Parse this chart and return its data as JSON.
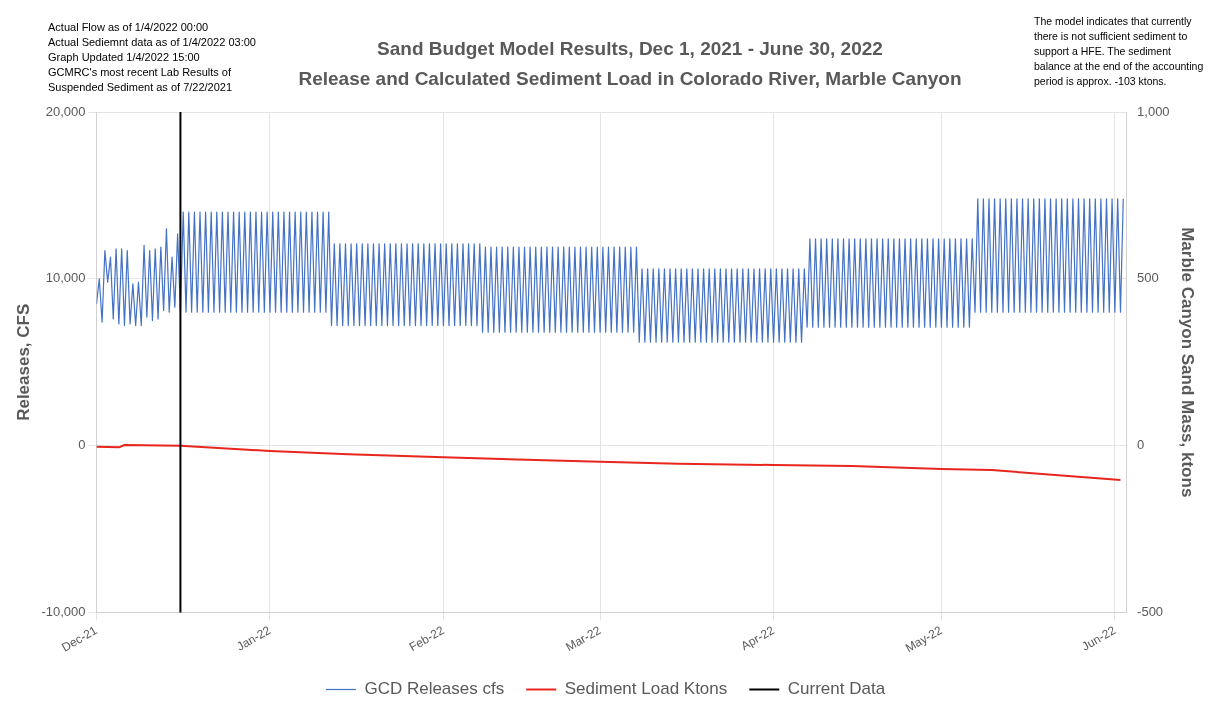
{
  "chart_data": {
    "type": "line",
    "title": "Sand Budget Model Results, Dec 1, 2021 - June 30, 2022",
    "subtitle": "Release and Calculated Sediment Load in Colorado River, Marble Canyon",
    "ylabel": "Releases, CFS",
    "y2label": "Marble Canyon Sand Mass, ktons",
    "annotations": [
      "Actual Flow as of 1/4/2022 00:00",
      "Actual Sediemnt data as of 1/4/2022 03:00",
      "Graph Updated 1/4/2022 15:00",
      "GCMRC's most recent Lab Results of Suspended Sediment as of 7/22/2021",
      "The model indicates that currently there is not sufficient sediment to support a HFE. The sediment balance at the end of the accounting period is approx. -103 ktons."
    ],
    "xlim": [
      "2021-12-01",
      "2022-06-03"
    ],
    "xticks": [
      {
        "value": "2021-12-01",
        "label": "Dec-21"
      },
      {
        "value": "2022-01-01",
        "label": "Jan-22"
      },
      {
        "value": "2022-02-01",
        "label": "Feb-22"
      },
      {
        "value": "2022-03-01",
        "label": "Mar-22"
      },
      {
        "value": "2022-04-01",
        "label": "Apr-22"
      },
      {
        "value": "2022-05-01",
        "label": "May-22"
      },
      {
        "value": "2022-06-01",
        "label": "Jun-22"
      }
    ],
    "ylim": [
      -10000,
      20000
    ],
    "yticks": [
      {
        "value": -10000,
        "label": "-10,000"
      },
      {
        "value": 0,
        "label": "0"
      },
      {
        "value": 10000,
        "label": "10,000"
      },
      {
        "value": 20000,
        "label": "20,000"
      }
    ],
    "y2lim": [
      -500,
      1000
    ],
    "y2ticks": [
      -500,
      0,
      500,
      {
        "value": 1000,
        "label": "1,000"
      }
    ],
    "grid": true,
    "legend": "bottom",
    "marker": "none",
    "line_style": "solid",
    "series": [
      {
        "name": "GCD Releases cfs",
        "color": "#4472c4",
        "x": [
          "2021-12-01",
          "2021-12-01T12:00",
          "2021-12-02",
          "2021-12-02T12:00",
          "2021-12-03",
          "2021-12-03T12:00",
          "2021-12-04",
          "2021-12-04T12:00",
          "2021-12-05",
          "2021-12-05T12:00",
          "2021-12-06",
          "2021-12-06T12:00",
          "2021-12-07",
          "2021-12-07T12:00",
          "2021-12-08",
          "2021-12-08T12:00",
          "2021-12-09",
          "2021-12-09T12:00",
          "2021-12-10",
          "2021-12-10T12:00",
          "2021-12-11",
          "2021-12-11T12:00",
          "2021-12-12",
          "2021-12-12T12:00",
          "2021-12-13",
          "2021-12-13T12:00",
          "2021-12-14",
          "2021-12-14T12:00",
          "2021-12-15",
          "2021-12-15T12:00",
          "2021-12-16",
          "2021-12-16T12:00",
          "2021-12-17",
          "2021-12-17T12:00",
          "2021-12-18",
          "2021-12-18T12:00",
          "2021-12-19",
          "2021-12-19T12:00",
          "2021-12-20",
          "2021-12-20T12:00",
          "2021-12-21",
          "2021-12-21T12:00",
          "2021-12-22",
          "2021-12-22T12:00",
          "2021-12-23",
          "2021-12-23T12:00",
          "2021-12-24",
          "2021-12-24T12:00",
          "2021-12-25",
          "2021-12-25T12:00",
          "2021-12-26",
          "2021-12-26T12:00",
          "2021-12-27",
          "2021-12-27T12:00",
          "2021-12-28",
          "2021-12-28T12:00",
          "2021-12-29",
          "2021-12-29T12:00",
          "2021-12-30",
          "2021-12-30T12:00",
          "2021-12-31",
          "2021-12-31T12:00",
          "2022-01-01",
          "2022-01-01T12:00",
          "2022-01-02",
          "2022-01-02T12:00",
          "2022-01-03",
          "2022-01-03T12:00",
          "2022-01-04",
          "2022-01-04T12:00",
          "2022-01-05",
          "2022-01-05T12:00",
          "2022-01-06",
          "2022-01-06T12:00",
          "2022-01-07",
          "2022-01-07T12:00",
          "2022-01-08",
          "2022-01-08T12:00",
          "2022-01-09",
          "2022-01-09T12:00",
          "2022-01-10",
          "2022-01-10T12:00",
          "2022-01-11",
          "2022-01-11T12:00",
          "2022-01-12",
          "2022-01-12T12:00",
          "2022-01-13",
          "2022-01-13T12:00",
          "2022-01-14",
          "2022-01-14T12:00",
          "2022-01-15",
          "2022-01-15T12:00",
          "2022-01-16",
          "2022-01-16T12:00",
          "2022-01-17",
          "2022-01-17T12:00",
          "2022-01-18",
          "2022-01-18T12:00",
          "2022-01-19",
          "2022-01-19T12:00",
          "2022-01-20",
          "2022-01-20T12:00",
          "2022-01-21",
          "2022-01-21T12:00",
          "2022-01-22",
          "2022-01-22T12:00",
          "2022-01-23",
          "2022-01-23T12:00",
          "2022-01-24",
          "2022-01-24T12:00",
          "2022-01-25",
          "2022-01-25T12:00",
          "2022-01-26",
          "2022-01-26T12:00",
          "2022-01-27",
          "2022-01-27T12:00",
          "2022-01-28",
          "2022-01-28T12:00",
          "2022-01-29",
          "2022-01-29T12:00",
          "2022-01-30",
          "2022-01-30T12:00",
          "2022-01-31",
          "2022-01-31T12:00",
          "2022-02-01",
          "2022-02-01T12:00",
          "2022-02-02",
          "2022-02-02T12:00",
          "2022-02-03",
          "2022-02-03T12:00",
          "2022-02-04",
          "2022-02-04T12:00",
          "2022-02-05",
          "2022-02-05T12:00",
          "2022-02-06",
          "2022-02-06T12:00",
          "2022-02-07",
          "2022-02-07T12:00",
          "2022-02-08",
          "2022-02-08T12:00",
          "2022-02-09",
          "2022-02-09T12:00",
          "2022-02-10",
          "2022-02-10T12:00",
          "2022-02-11",
          "2022-02-11T12:00",
          "2022-02-12",
          "2022-02-12T12:00",
          "2022-02-13",
          "2022-02-13T12:00",
          "2022-02-14",
          "2022-02-14T12:00",
          "2022-02-15",
          "2022-02-15T12:00",
          "2022-02-16",
          "2022-02-16T12:00",
          "2022-02-17",
          "2022-02-17T12:00",
          "2022-02-18",
          "2022-02-18T12:00",
          "2022-02-19",
          "2022-02-19T12:00",
          "2022-02-20",
          "2022-02-20T12:00",
          "2022-02-21",
          "2022-02-21T12:00",
          "2022-02-22",
          "2022-02-22T12:00",
          "2022-02-23",
          "2022-02-23T12:00",
          "2022-02-24",
          "2022-02-24T12:00",
          "2022-02-25",
          "2022-02-25T12:00",
          "2022-02-26",
          "2022-02-26T12:00",
          "2022-02-27",
          "2022-02-27T12:00",
          "2022-02-28",
          "2022-02-28T12:00",
          "2022-03-01",
          "2022-03-01T12:00",
          "2022-03-02",
          "2022-03-02T12:00",
          "2022-03-03",
          "2022-03-03T12:00",
          "2022-03-04",
          "2022-03-04T12:00",
          "2022-03-05",
          "2022-03-05T12:00",
          "2022-03-06",
          "2022-03-06T12:00",
          "2022-03-07",
          "2022-03-07T12:00",
          "2022-03-08",
          "2022-03-08T12:00",
          "2022-03-09",
          "2022-03-09T12:00",
          "2022-03-10",
          "2022-03-10T12:00",
          "2022-03-11",
          "2022-03-11T12:00",
          "2022-03-12",
          "2022-03-12T12:00",
          "2022-03-13",
          "2022-03-13T12:00",
          "2022-03-14",
          "2022-03-14T12:00",
          "2022-03-15",
          "2022-03-15T12:00",
          "2022-03-16",
          "2022-03-16T12:00",
          "2022-03-17",
          "2022-03-17T12:00",
          "2022-03-18",
          "2022-03-18T12:00",
          "2022-03-19",
          "2022-03-19T12:00",
          "2022-03-20",
          "2022-03-20T12:00",
          "2022-03-21",
          "2022-03-21T12:00",
          "2022-03-22",
          "2022-03-22T12:00",
          "2022-03-23",
          "2022-03-23T12:00",
          "2022-03-24",
          "2022-03-24T12:00",
          "2022-03-25",
          "2022-03-25T12:00",
          "2022-03-26",
          "2022-03-26T12:00",
          "2022-03-27",
          "2022-03-27T12:00",
          "2022-03-28",
          "2022-03-28T12:00",
          "2022-03-29",
          "2022-03-29T12:00",
          "2022-03-30",
          "2022-03-30T12:00",
          "2022-03-31",
          "2022-03-31T12:00",
          "2022-04-01",
          "2022-04-01T12:00",
          "2022-04-02",
          "2022-04-02T12:00",
          "2022-04-03",
          "2022-04-03T12:00",
          "2022-04-04",
          "2022-04-04T12:00",
          "2022-04-05",
          "2022-04-05T12:00",
          "2022-04-06",
          "2022-04-06T12:00",
          "2022-04-07",
          "2022-04-07T12:00",
          "2022-04-08",
          "2022-04-08T12:00",
          "2022-04-09",
          "2022-04-09T12:00",
          "2022-04-10",
          "2022-04-10T12:00",
          "2022-04-11",
          "2022-04-11T12:00",
          "2022-04-12",
          "2022-04-12T12:00",
          "2022-04-13",
          "2022-04-13T12:00",
          "2022-04-14",
          "2022-04-14T12:00",
          "2022-04-15",
          "2022-04-15T12:00",
          "2022-04-16",
          "2022-04-16T12:00",
          "2022-04-17",
          "2022-04-17T12:00",
          "2022-04-18",
          "2022-04-18T12:00",
          "2022-04-19",
          "2022-04-19T12:00",
          "2022-04-20",
          "2022-04-20T12:00",
          "2022-04-21",
          "2022-04-21T12:00",
          "2022-04-22",
          "2022-04-22T12:00",
          "2022-04-23",
          "2022-04-23T12:00",
          "2022-04-24",
          "2022-04-24T12:00",
          "2022-04-25",
          "2022-04-25T12:00",
          "2022-04-26",
          "2022-04-26T12:00",
          "2022-04-27",
          "2022-04-27T12:00",
          "2022-04-28",
          "2022-04-28T12:00",
          "2022-04-29",
          "2022-04-29T12:00",
          "2022-04-30",
          "2022-04-30T12:00",
          "2022-05-01",
          "2022-05-01T12:00",
          "2022-05-02",
          "2022-05-02T12:00",
          "2022-05-03",
          "2022-05-03T12:00",
          "2022-05-04",
          "2022-05-04T12:00",
          "2022-05-05",
          "2022-05-05T12:00",
          "2022-05-06",
          "2022-05-06T12:00",
          "2022-05-07",
          "2022-05-07T12:00",
          "2022-05-08",
          "2022-05-08T12:00",
          "2022-05-09",
          "2022-05-09T12:00",
          "2022-05-10",
          "2022-05-10T12:00",
          "2022-05-11",
          "2022-05-11T12:00",
          "2022-05-12",
          "2022-05-12T12:00",
          "2022-05-13",
          "2022-05-13T12:00",
          "2022-05-14",
          "2022-05-14T12:00",
          "2022-05-15",
          "2022-05-15T12:00",
          "2022-05-16",
          "2022-05-16T12:00",
          "2022-05-17",
          "2022-05-17T12:00",
          "2022-05-18",
          "2022-05-18T12:00",
          "2022-05-19",
          "2022-05-19T12:00",
          "2022-05-20",
          "2022-05-20T12:00",
          "2022-05-21",
          "2022-05-21T12:00",
          "2022-05-22",
          "2022-05-22T12:00",
          "2022-05-23",
          "2022-05-23T12:00",
          "2022-05-24",
          "2022-05-24T12:00",
          "2022-05-25",
          "2022-05-25T12:00",
          "2022-05-26",
          "2022-05-26T12:00",
          "2022-05-27",
          "2022-05-27T12:00",
          "2022-05-28",
          "2022-05-28T12:00",
          "2022-05-29",
          "2022-05-29T12:00",
          "2022-05-30",
          "2022-05-30T12:00",
          "2022-05-31",
          "2022-05-31T12:00",
          "2022-06-01",
          "2022-06-01T12:00",
          "2022-06-02",
          "2022-06-02T12:00"
        ],
        "values": [
          8500,
          10000,
          7400,
          11700,
          9800,
          11300,
          7600,
          11800,
          7300,
          11800,
          7200,
          11700,
          7300,
          9700,
          7200,
          9800,
          7200,
          12000,
          7700,
          11700,
          7500,
          11800,
          7600,
          11900,
          8100,
          13000,
          8000,
          11300,
          8300,
          12700,
          8000,
          14000,
          8000,
          14000,
          8000,
          14000,
          8000,
          14000,
          8000,
          14000,
          8000,
          14000,
          8000,
          14000,
          8000,
          14000,
          8000,
          14000,
          8000,
          14000,
          8000,
          14000,
          8000,
          14000,
          8000,
          14000,
          8000,
          14000,
          8000,
          14000,
          8000,
          14000,
          8000,
          14000,
          8000,
          14000,
          8000,
          14000,
          8000,
          14000,
          8000,
          14000,
          8000,
          14000,
          8000,
          14000,
          8000,
          14000,
          8000,
          14000,
          8000,
          14000,
          8000,
          14000,
          7200,
          12100,
          7200,
          12100,
          7200,
          12100,
          7200,
          12100,
          7200,
          12100,
          7200,
          12100,
          7200,
          12100,
          7200,
          12100,
          7200,
          12100,
          7200,
          12100,
          7200,
          12100,
          7200,
          12100,
          7200,
          12100,
          7200,
          12100,
          7200,
          12100,
          7200,
          12100,
          7200,
          12100,
          7200,
          12100,
          7200,
          12100,
          7200,
          12100,
          7200,
          12100,
          7200,
          12100,
          7200,
          12100,
          7200,
          12100,
          7200,
          12100,
          7200,
          12100,
          7200,
          12100,
          6800,
          11900,
          6800,
          11900,
          6800,
          11900,
          6800,
          11900,
          6800,
          11900,
          6800,
          11900,
          6800,
          11900,
          6800,
          11900,
          6800,
          11900,
          6800,
          11900,
          6800,
          11900,
          6800,
          11900,
          6800,
          11900,
          6800,
          11900,
          6800,
          11900,
          6800,
          11900,
          6800,
          11900,
          6800,
          11900,
          6800,
          11900,
          6800,
          11900,
          6800,
          11900,
          6800,
          11900,
          6800,
          11900,
          6800,
          11900,
          6800,
          11900,
          6800,
          11900,
          6800,
          11900,
          6800,
          11900,
          6200,
          10600,
          6200,
          10600,
          6200,
          10600,
          6200,
          10600,
          6200,
          10600,
          6200,
          10600,
          6200,
          10600,
          6200,
          10600,
          6200,
          10600,
          6200,
          10600,
          6200,
          10600,
          6200,
          10600,
          6200,
          10600,
          6200,
          10600,
          6200,
          10600,
          6200,
          10600,
          6200,
          10600,
          6200,
          10600,
          6200,
          10600,
          6200,
          10600,
          6200,
          10600,
          6200,
          10600,
          6200,
          10600,
          6200,
          10600,
          6200,
          10600,
          6200,
          10600,
          6200,
          10600,
          6200,
          10600,
          6200,
          10600,
          6200,
          10600,
          7100,
          12400,
          7100,
          12400,
          7100,
          12400,
          7100,
          12400,
          7100,
          12400,
          7100,
          12400,
          7100,
          12400,
          7100,
          12400,
          7100,
          12400,
          7100,
          12400,
          7100,
          12400,
          7100,
          12400,
          7100,
          12400,
          7100,
          12400,
          7100,
          12400,
          7100,
          12400,
          7100,
          12400,
          7100,
          12400,
          7100,
          12400,
          7100,
          12400,
          7100,
          12400,
          7100,
          12400,
          7100,
          12400,
          7100,
          12400,
          7100,
          12400,
          7100,
          12400,
          7100,
          12400,
          7100,
          12400,
          7100,
          12400,
          7100,
          12400,
          8000,
          14800,
          8000,
          14800,
          8000,
          14800,
          8000,
          14800,
          8000,
          14800,
          8000,
          14800,
          8000,
          14800,
          8000,
          14800,
          8000,
          14800,
          8000,
          14800,
          8000,
          14800,
          8000,
          14800,
          8000,
          14800,
          8000,
          14800,
          8000,
          14800,
          8000,
          14800,
          8000,
          14800,
          8000,
          14800,
          8000,
          14800,
          8000,
          14800,
          8000,
          14800,
          8000,
          14800,
          8000,
          14800,
          8000,
          14800,
          8000,
          14800,
          8000,
          14800,
          8000,
          14800
        ]
      },
      {
        "name": "Sediment Load Ktons",
        "color": "#e8261e",
        "axis": "y2",
        "x": [
          "2021-12-01",
          "2021-12-05",
          "2021-12-06",
          "2021-12-16",
          "2022-01-01",
          "2022-01-15",
          "2022-02-01",
          "2022-03-01",
          "2022-03-15",
          "2022-04-01",
          "2022-04-15",
          "2022-05-01",
          "2022-05-10",
          "2022-06-02"
        ],
        "values": [
          -3,
          -5,
          2,
          0,
          -16,
          -26,
          -35,
          -48,
          -54,
          -58,
          -61,
          -70,
          -73,
          -103
        ]
      },
      {
        "name": "Current Data",
        "color": "#000000",
        "x": [
          "2021-12-16",
          "2021-12-16"
        ],
        "values": [
          20000,
          -10000
        ]
      }
    ]
  }
}
